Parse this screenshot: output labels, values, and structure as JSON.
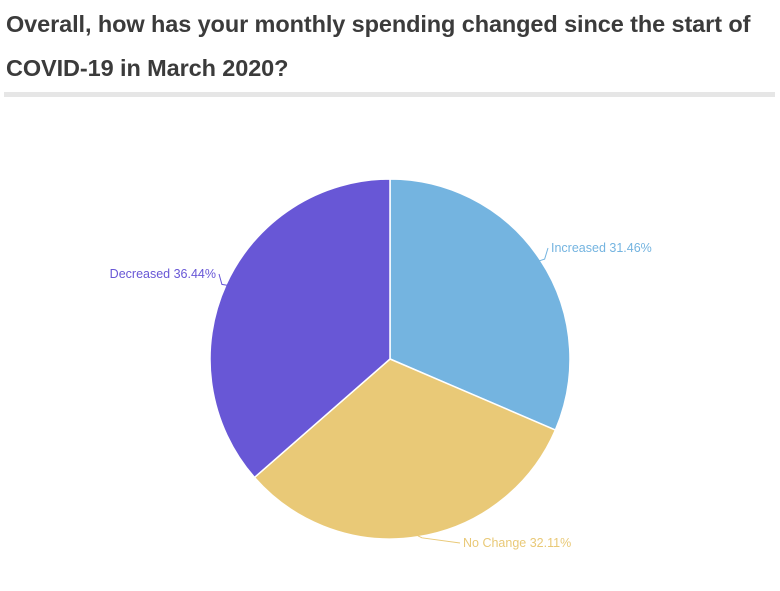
{
  "title": "Overall, how has your monthly spending changed since the start of COVID-19 in March 2020?",
  "chart_data": {
    "type": "pie",
    "title": "Overall, how has your monthly spending changed since the start of COVID-19 in March 2020?",
    "slices": [
      {
        "label": "Increased",
        "value": 31.46,
        "display": "Increased 31.46%",
        "color": "#74b4e0"
      },
      {
        "label": "No Change",
        "value": 32.11,
        "display": "No Change 32.11%",
        "color": "#e9c977"
      },
      {
        "label": "Decreased",
        "value": 36.44,
        "display": "Decreased 36.44%",
        "color": "#6857d6"
      }
    ],
    "start_angle": "12 o'clock",
    "direction": "clockwise",
    "legend": "none",
    "labels": "outside-with-leader-lines"
  }
}
